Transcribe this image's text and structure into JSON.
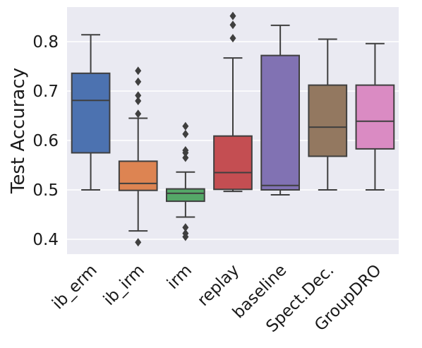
{
  "chart_data": {
    "type": "box",
    "ylabel": "Test Accuracy",
    "xlabel": "",
    "ylim": [
      0.37,
      0.87
    ],
    "yticks": [
      0.4,
      0.5,
      0.6,
      0.7,
      0.8
    ],
    "ytick_labels": [
      "0.4",
      "0.5",
      "0.6",
      "0.7",
      "0.8"
    ],
    "grid": true,
    "categories": [
      "ib_erm",
      "ib_irm",
      "irm",
      "replay",
      "baseline",
      "Spect.Dec.",
      "GroupDRO"
    ],
    "boxes": [
      {
        "name": "ib_erm",
        "color": "#4C72B0",
        "whislo": 0.5,
        "q1": 0.575,
        "med": 0.681,
        "q3": 0.736,
        "whishi": 0.814,
        "fliers": []
      },
      {
        "name": "ib_irm",
        "color": "#DD8452",
        "whislo": 0.417,
        "q1": 0.499,
        "med": 0.513,
        "q3": 0.558,
        "whishi": 0.645,
        "fliers": [
          0.394,
          0.654,
          0.68,
          0.691,
          0.719,
          0.741
        ]
      },
      {
        "name": "irm",
        "color": "#55A868",
        "whislo": 0.445,
        "q1": 0.477,
        "med": 0.493,
        "q3": 0.502,
        "whishi": 0.536,
        "fliers": [
          0.405,
          0.412,
          0.424,
          0.565,
          0.575,
          0.58,
          0.613,
          0.629
        ]
      },
      {
        "name": "replay",
        "color": "#C44E52",
        "whislo": 0.497,
        "q1": 0.501,
        "med": 0.535,
        "q3": 0.609,
        "whishi": 0.767,
        "fliers": [
          0.807,
          0.834,
          0.852
        ]
      },
      {
        "name": "baseline",
        "color": "#8172B3",
        "whislo": 0.49,
        "q1": 0.5,
        "med": 0.509,
        "q3": 0.772,
        "whishi": 0.833,
        "fliers": []
      },
      {
        "name": "Spect.Dec.",
        "color": "#937860",
        "whislo": 0.5,
        "q1": 0.568,
        "med": 0.627,
        "q3": 0.712,
        "whishi": 0.805,
        "fliers": []
      },
      {
        "name": "GroupDRO",
        "color": "#DA8BC3",
        "whislo": 0.5,
        "q1": 0.583,
        "med": 0.639,
        "q3": 0.712,
        "whishi": 0.796,
        "fliers": []
      }
    ]
  }
}
